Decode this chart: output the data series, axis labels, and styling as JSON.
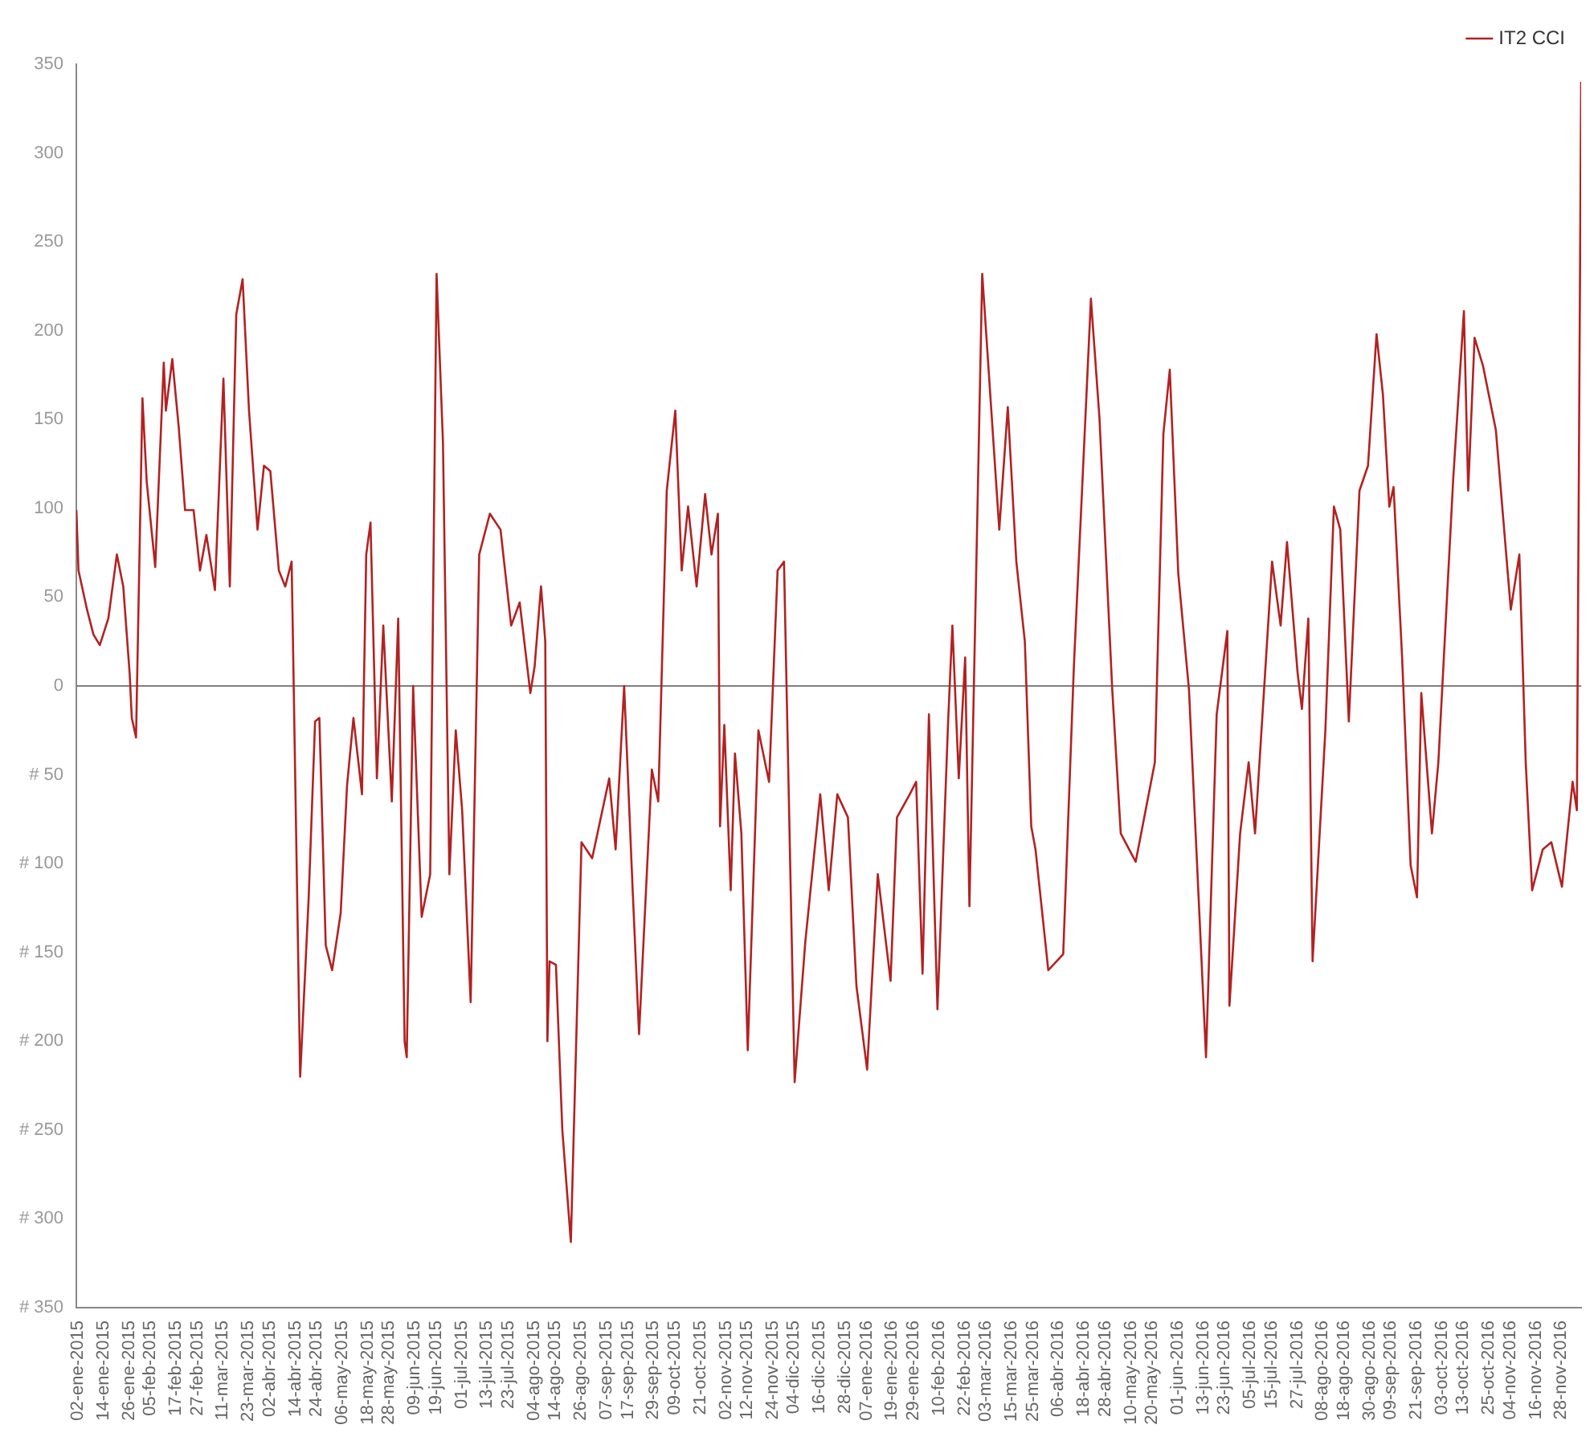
{
  "chart_data": {
    "type": "line",
    "legend": "top right",
    "grid": false,
    "marker": "none",
    "x": [
      "2015-01-02",
      "2015-01-03",
      "2015-01-07",
      "2015-01-10",
      "2015-01-13",
      "2015-01-17",
      "2015-01-21",
      "2015-01-24",
      "2015-01-27",
      "2015-01-28",
      "2015-01-30",
      "2015-02-02",
      "2015-02-04",
      "2015-02-08",
      "2015-02-12",
      "2015-02-13",
      "2015-02-16",
      "2015-02-19",
      "2015-02-22",
      "2015-02-26",
      "2015-03-01",
      "2015-03-04",
      "2015-03-08",
      "2015-03-12",
      "2015-03-15",
      "2015-03-18",
      "2015-03-21",
      "2015-03-24",
      "2015-03-28",
      "2015-03-31",
      "2015-04-03",
      "2015-04-07",
      "2015-04-10",
      "2015-04-13",
      "2015-04-17",
      "2015-04-21",
      "2015-04-24",
      "2015-04-26",
      "2015-04-29",
      "2015-05-02",
      "2015-05-06",
      "2015-05-09",
      "2015-05-12",
      "2015-05-16",
      "2015-05-18",
      "2015-05-20",
      "2015-05-23",
      "2015-05-26",
      "2015-05-30",
      "2015-06-02",
      "2015-06-05",
      "2015-06-06",
      "2015-06-09",
      "2015-06-13",
      "2015-06-17",
      "2015-06-20",
      "2015-06-23",
      "2015-06-26",
      "2015-06-29",
      "2015-07-02",
      "2015-07-06",
      "2015-07-10",
      "2015-07-15",
      "2015-07-20",
      "2015-07-25",
      "2015-07-29",
      "2015-08-03",
      "2015-08-05",
      "2015-08-08",
      "2015-08-10",
      "2015-08-11",
      "2015-08-12",
      "2015-08-15",
      "2015-08-18",
      "2015-08-22",
      "2015-08-27",
      "2015-09-01",
      "2015-09-09",
      "2015-09-12",
      "2015-09-16",
      "2015-09-20",
      "2015-09-23",
      "2015-09-29",
      "2015-10-02",
      "2015-10-06",
      "2015-10-10",
      "2015-10-13",
      "2015-10-16",
      "2015-10-20",
      "2015-10-24",
      "2015-10-27",
      "2015-10-30",
      "2015-10-31",
      "2015-11-02",
      "2015-11-05",
      "2015-11-07",
      "2015-11-10",
      "2015-11-13",
      "2015-11-18",
      "2015-11-23",
      "2015-11-27",
      "2015-11-30",
      "2015-12-05",
      "2015-12-10",
      "2015-12-17",
      "2015-12-21",
      "2015-12-25",
      "2015-12-30",
      "2016-01-03",
      "2016-01-08",
      "2016-01-13",
      "2016-01-19",
      "2016-01-22",
      "2016-01-28",
      "2016-01-31",
      "2016-02-03",
      "2016-02-06",
      "2016-02-10",
      "2016-02-15",
      "2016-02-17",
      "2016-02-20",
      "2016-02-23",
      "2016-02-25",
      "2016-03-02",
      "2016-03-10",
      "2016-03-14",
      "2016-03-18",
      "2016-03-22",
      "2016-03-25",
      "2016-03-27",
      "2016-04-02",
      "2016-04-09",
      "2016-04-14",
      "2016-04-22",
      "2016-04-26",
      "2016-05-02",
      "2016-05-06",
      "2016-05-13",
      "2016-05-22",
      "2016-05-26",
      "2016-05-29",
      "2016-06-02",
      "2016-06-07",
      "2016-06-15",
      "2016-06-20",
      "2016-06-25",
      "2016-06-26",
      "2016-07-01",
      "2016-07-05",
      "2016-07-08",
      "2016-07-16",
      "2016-07-20",
      "2016-07-23",
      "2016-07-28",
      "2016-07-30",
      "2016-08-02",
      "2016-08-04",
      "2016-08-10",
      "2016-08-14",
      "2016-08-17",
      "2016-08-21",
      "2016-08-26",
      "2016-08-30",
      "2016-09-03",
      "2016-09-06",
      "2016-09-09",
      "2016-09-11",
      "2016-09-15",
      "2016-09-19",
      "2016-09-22",
      "2016-09-24",
      "2016-09-29",
      "2016-10-02",
      "2016-10-09",
      "2016-10-14",
      "2016-10-16",
      "2016-10-19",
      "2016-10-23",
      "2016-10-29",
      "2016-11-05",
      "2016-11-09",
      "2016-11-12",
      "2016-11-15",
      "2016-11-20",
      "2016-11-24",
      "2016-11-29",
      "2016-12-04",
      "2016-12-06",
      "2016-12-08"
    ],
    "series": [
      {
        "name": "IT2 CCI",
        "color": "#b22222",
        "values": [
          99,
          65,
          43,
          29,
          23,
          38,
          74,
          56,
          7,
          -18,
          -29,
          162,
          115,
          67,
          182,
          155,
          184,
          146,
          99,
          99,
          65,
          85,
          54,
          173,
          56,
          209,
          229,
          155,
          88,
          124,
          121,
          65,
          56,
          70,
          -220,
          -119,
          -20,
          -18,
          -146,
          -160,
          -128,
          -56,
          -18,
          -61,
          74,
          92,
          -52,
          34,
          -65,
          38,
          -200,
          -209,
          0,
          -130,
          -106,
          232,
          137,
          -106,
          -25,
          -70,
          -178,
          74,
          97,
          88,
          34,
          47,
          -4,
          11,
          56,
          25,
          -200,
          -155,
          -157,
          -250,
          -313,
          -88,
          -97,
          -52,
          -92,
          0,
          -115,
          -196,
          -47,
          -65,
          110,
          155,
          65,
          101,
          56,
          108,
          74,
          97,
          -79,
          -22,
          -115,
          -38,
          -83,
          -205,
          -25,
          -54,
          65,
          70,
          -223,
          -144,
          -61,
          -115,
          -61,
          -74,
          -169,
          -216,
          -106,
          -166,
          -74,
          -61,
          -54,
          -162,
          -16,
          -182,
          -20,
          34,
          -52,
          16,
          -124,
          232,
          88,
          157,
          70,
          25,
          -79,
          -92,
          -160,
          -151,
          11,
          218,
          151,
          -2,
          -83,
          -99,
          -43,
          142,
          178,
          63,
          -2,
          -209,
          -16,
          31,
          -180,
          -83,
          -43,
          -83,
          70,
          34,
          81,
          7,
          -13,
          38,
          -155,
          -25,
          101,
          88,
          -20,
          110,
          124,
          198,
          164,
          101,
          112,
          16,
          -101,
          -119,
          -4,
          -83,
          -43,
          117,
          211,
          110,
          196,
          180,
          144,
          43,
          74,
          -43,
          -115,
          -92,
          -88,
          -113,
          -54,
          -70,
          340
        ]
      }
    ],
    "xlim": [
      "2015-01-02",
      "2016-12-08"
    ],
    "xticks": [
      {
        "value": "2015-01-02",
        "label": "02-ene-2015"
      },
      {
        "value": "2015-01-14",
        "label": "14-ene-2015"
      },
      {
        "value": "2015-01-26",
        "label": "26-ene-2015"
      },
      {
        "value": "2015-02-05",
        "label": "05-feb-2015"
      },
      {
        "value": "2015-02-17",
        "label": "17-feb-2015"
      },
      {
        "value": "2015-02-27",
        "label": "27-feb-2015"
      },
      {
        "value": "2015-03-11",
        "label": "11-mar-2015"
      },
      {
        "value": "2015-03-23",
        "label": "23-mar-2015"
      },
      {
        "value": "2015-04-02",
        "label": "02-abr-2015"
      },
      {
        "value": "2015-04-14",
        "label": "14-abr-2015"
      },
      {
        "value": "2015-04-24",
        "label": "24-abr-2015"
      },
      {
        "value": "2015-05-06",
        "label": "06-may-2015"
      },
      {
        "value": "2015-05-18",
        "label": "18-may-2015"
      },
      {
        "value": "2015-05-28",
        "label": "28-may-2015"
      },
      {
        "value": "2015-06-09",
        "label": "09-jun-2015"
      },
      {
        "value": "2015-06-19",
        "label": "19-jun-2015"
      },
      {
        "value": "2015-07-01",
        "label": "01-jul-2015"
      },
      {
        "value": "2015-07-13",
        "label": "13-jul-2015"
      },
      {
        "value": "2015-07-23",
        "label": "23-jul-2015"
      },
      {
        "value": "2015-08-04",
        "label": "04-ago-2015"
      },
      {
        "value": "2015-08-14",
        "label": "14-ago-2015"
      },
      {
        "value": "2015-08-26",
        "label": "26-ago-2015"
      },
      {
        "value": "2015-09-07",
        "label": "07-sep-2015"
      },
      {
        "value": "2015-09-17",
        "label": "17-sep-2015"
      },
      {
        "value": "2015-09-29",
        "label": "29-sep-2015"
      },
      {
        "value": "2015-10-09",
        "label": "09-oct-2015"
      },
      {
        "value": "2015-10-21",
        "label": "21-oct-2015"
      },
      {
        "value": "2015-11-02",
        "label": "02-nov-2015"
      },
      {
        "value": "2015-11-12",
        "label": "12-nov-2015"
      },
      {
        "value": "2015-11-24",
        "label": "24-nov-2015"
      },
      {
        "value": "2015-12-04",
        "label": "04-dic-2015"
      },
      {
        "value": "2015-12-16",
        "label": "16-dic-2015"
      },
      {
        "value": "2015-12-28",
        "label": "28-dic-2015"
      },
      {
        "value": "2016-01-07",
        "label": "07-ene-2016"
      },
      {
        "value": "2016-01-19",
        "label": "19-ene-2016"
      },
      {
        "value": "2016-01-29",
        "label": "29-ene-2016"
      },
      {
        "value": "2016-02-10",
        "label": "10-feb-2016"
      },
      {
        "value": "2016-02-22",
        "label": "22-feb-2016"
      },
      {
        "value": "2016-03-03",
        "label": "03-mar-2016"
      },
      {
        "value": "2016-03-15",
        "label": "15-mar-2016"
      },
      {
        "value": "2016-03-25",
        "label": "25-mar-2016"
      },
      {
        "value": "2016-04-06",
        "label": "06-abr-2016"
      },
      {
        "value": "2016-04-18",
        "label": "18-abr-2016"
      },
      {
        "value": "2016-04-28",
        "label": "28-abr-2016"
      },
      {
        "value": "2016-05-10",
        "label": "10-may-2016"
      },
      {
        "value": "2016-05-20",
        "label": "20-may-2016"
      },
      {
        "value": "2016-06-01",
        "label": "01-jun-2016"
      },
      {
        "value": "2016-06-13",
        "label": "13-jun-2016"
      },
      {
        "value": "2016-06-23",
        "label": "23-jun-2016"
      },
      {
        "value": "2016-07-05",
        "label": "05-jul-2016"
      },
      {
        "value": "2016-07-15",
        "label": "15-jul-2016"
      },
      {
        "value": "2016-07-27",
        "label": "27-jul-2016"
      },
      {
        "value": "2016-08-08",
        "label": "08-ago-2016"
      },
      {
        "value": "2016-08-18",
        "label": "18-ago-2016"
      },
      {
        "value": "2016-08-30",
        "label": "30-ago-2016"
      },
      {
        "value": "2016-09-09",
        "label": "09-sep-2016"
      },
      {
        "value": "2016-09-21",
        "label": "21-sep-2016"
      },
      {
        "value": "2016-10-03",
        "label": "03-oct-2016"
      },
      {
        "value": "2016-10-13",
        "label": "13-oct-2016"
      },
      {
        "value": "2016-10-25",
        "label": "25-oct-2016"
      },
      {
        "value": "2016-11-04",
        "label": "04-nov-2016"
      },
      {
        "value": "2016-11-16",
        "label": "16-nov-2016"
      },
      {
        "value": "2016-11-28",
        "label": "28-nov-2016"
      }
    ],
    "ylim": [
      -350,
      350
    ],
    "yticks": [
      {
        "value": -350,
        "label": "# 350"
      },
      {
        "value": -300,
        "label": "# 300"
      },
      {
        "value": -250,
        "label": "# 250"
      },
      {
        "value": -200,
        "label": "# 200"
      },
      {
        "value": -150,
        "label": "# 150"
      },
      {
        "value": -100,
        "label": "# 100"
      },
      {
        "value": -50,
        "label": "# 50"
      },
      0,
      50,
      100,
      150,
      200,
      250,
      300,
      350
    ],
    "ref_lines": [
      {
        "axis": "y",
        "value": 0,
        "color": "#808080"
      }
    ]
  }
}
